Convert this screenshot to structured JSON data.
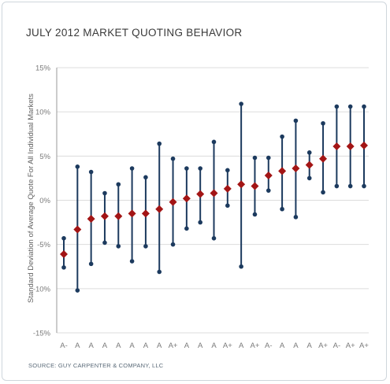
{
  "chart_data": {
    "type": "scatter",
    "title": "JULY 2012 MARKET QUOTING BEHAVIOR",
    "ylabel": "Standard Deviation of Average Quote For All Individual Markets",
    "xlabel": "",
    "ylim": [
      -15,
      15
    ],
    "yticks": [
      -15,
      -10,
      -5,
      0,
      5,
      10,
      15
    ],
    "ytick_labels": [
      "-15%",
      "-10%",
      "-5%",
      "0%",
      "5%",
      "10%",
      "15%"
    ],
    "categories": [
      "A-",
      "A",
      "A",
      "A",
      "A",
      "A",
      "A",
      "A",
      "A+",
      "A",
      "A",
      "A",
      "A+",
      "A",
      "A+",
      "A-",
      "A",
      "A",
      "A",
      "A+",
      "A-",
      "A+",
      "A+"
    ],
    "series": [
      {
        "values": [
          -6.1,
          -3.3,
          -2.1,
          -1.8,
          -1.8,
          -1.5,
          -1.5,
          -1.0,
          -0.2,
          0.2,
          0.7,
          0.8,
          1.3,
          1.8,
          1.6,
          2.8,
          3.3,
          3.6,
          4.0,
          4.7,
          6.1,
          6.1,
          6.2
        ],
        "upper": [
          -4.3,
          3.8,
          3.2,
          0.8,
          1.8,
          3.6,
          2.6,
          6.4,
          4.7,
          3.6,
          3.6,
          6.6,
          3.4,
          10.9,
          4.8,
          4.8,
          7.2,
          9.0,
          5.4,
          8.7,
          10.6,
          10.6,
          10.6
        ],
        "lower": [
          -7.6,
          -10.2,
          -7.2,
          -4.8,
          -5.2,
          -6.9,
          -5.2,
          -8.1,
          -5.0,
          -3.2,
          -2.5,
          -4.3,
          -0.6,
          -7.5,
          -1.6,
          1.1,
          -1.0,
          -1.9,
          2.5,
          0.9,
          1.6,
          1.6,
          1.6
        ]
      }
    ],
    "colors": {
      "marker": "#a31515",
      "whisker": "#1c3a5e",
      "grid": "#dcdcdc",
      "axis": "#9a9a9a"
    },
    "grid": true,
    "legend": "none"
  },
  "source": "SOURCE: GUY CARPENTER & COMPANY, LLC"
}
